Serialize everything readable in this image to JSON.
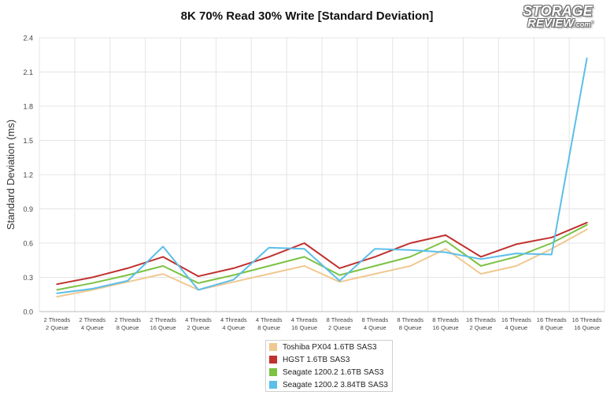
{
  "logo": {
    "line1": "STORAGE",
    "line2": "REVIEW",
    "line2_suffix": ".com",
    "mark": "®"
  },
  "chart_data": {
    "type": "line",
    "title": "8K 70% Read 30% Write [Standard Deviation]",
    "xlabel": "",
    "ylabel": "Standard Deviation (ms)",
    "ylim": [
      0,
      2.4
    ],
    "yticks": [
      "0.0",
      "0.3",
      "0.6",
      "0.9",
      "1.2",
      "1.5",
      "1.8",
      "2.1",
      "2.4"
    ],
    "grid": true,
    "legend_position": "bottom",
    "categories": [
      [
        "2 Threads",
        "2 Queue"
      ],
      [
        "2 Threads",
        "4 Queue"
      ],
      [
        "2 Threads",
        "8 Queue"
      ],
      [
        "2 Threads",
        "16 Queue"
      ],
      [
        "4 Threads",
        "2 Queue"
      ],
      [
        "4 Threads",
        "4 Queue"
      ],
      [
        "4 Threads",
        "8 Queue"
      ],
      [
        "4 Threads",
        "16 Queue"
      ],
      [
        "8 Threads",
        "2 Queue"
      ],
      [
        "8 Threads",
        "4 Queue"
      ],
      [
        "8 Threads",
        "8 Queue"
      ],
      [
        "8 Threads",
        "16 Queue"
      ],
      [
        "16 Threads",
        "2 Queue"
      ],
      [
        "16 Threads",
        "4 Queue"
      ],
      [
        "16 Threads",
        "8 Queue"
      ],
      [
        "16 Threads",
        "16 Queue"
      ]
    ],
    "series": [
      {
        "name": "Toshiba PX04 1.6TB SAS3",
        "color": "#f0c890",
        "values": [
          0.13,
          0.19,
          0.26,
          0.33,
          0.19,
          0.26,
          0.33,
          0.4,
          0.26,
          0.33,
          0.4,
          0.55,
          0.33,
          0.4,
          0.55,
          0.72
        ]
      },
      {
        "name": "HGST 1.6TB SAS3",
        "color": "#c0312f",
        "values": [
          0.24,
          0.3,
          0.38,
          0.48,
          0.31,
          0.38,
          0.48,
          0.6,
          0.38,
          0.48,
          0.6,
          0.67,
          0.48,
          0.59,
          0.65,
          0.78
        ]
      },
      {
        "name": "Seagate 1200.2 1.6TB SAS3",
        "color": "#7cc243",
        "values": [
          0.19,
          0.25,
          0.32,
          0.4,
          0.25,
          0.32,
          0.4,
          0.48,
          0.32,
          0.4,
          0.48,
          0.62,
          0.4,
          0.48,
          0.6,
          0.76
        ]
      },
      {
        "name": "Seagate 1200.2 3.84TB SAS3",
        "color": "#5bbfe9",
        "values": [
          0.16,
          0.2,
          0.27,
          0.57,
          0.19,
          0.28,
          0.56,
          0.55,
          0.27,
          0.55,
          0.54,
          0.52,
          0.46,
          0.51,
          0.5,
          2.22
        ]
      }
    ]
  }
}
